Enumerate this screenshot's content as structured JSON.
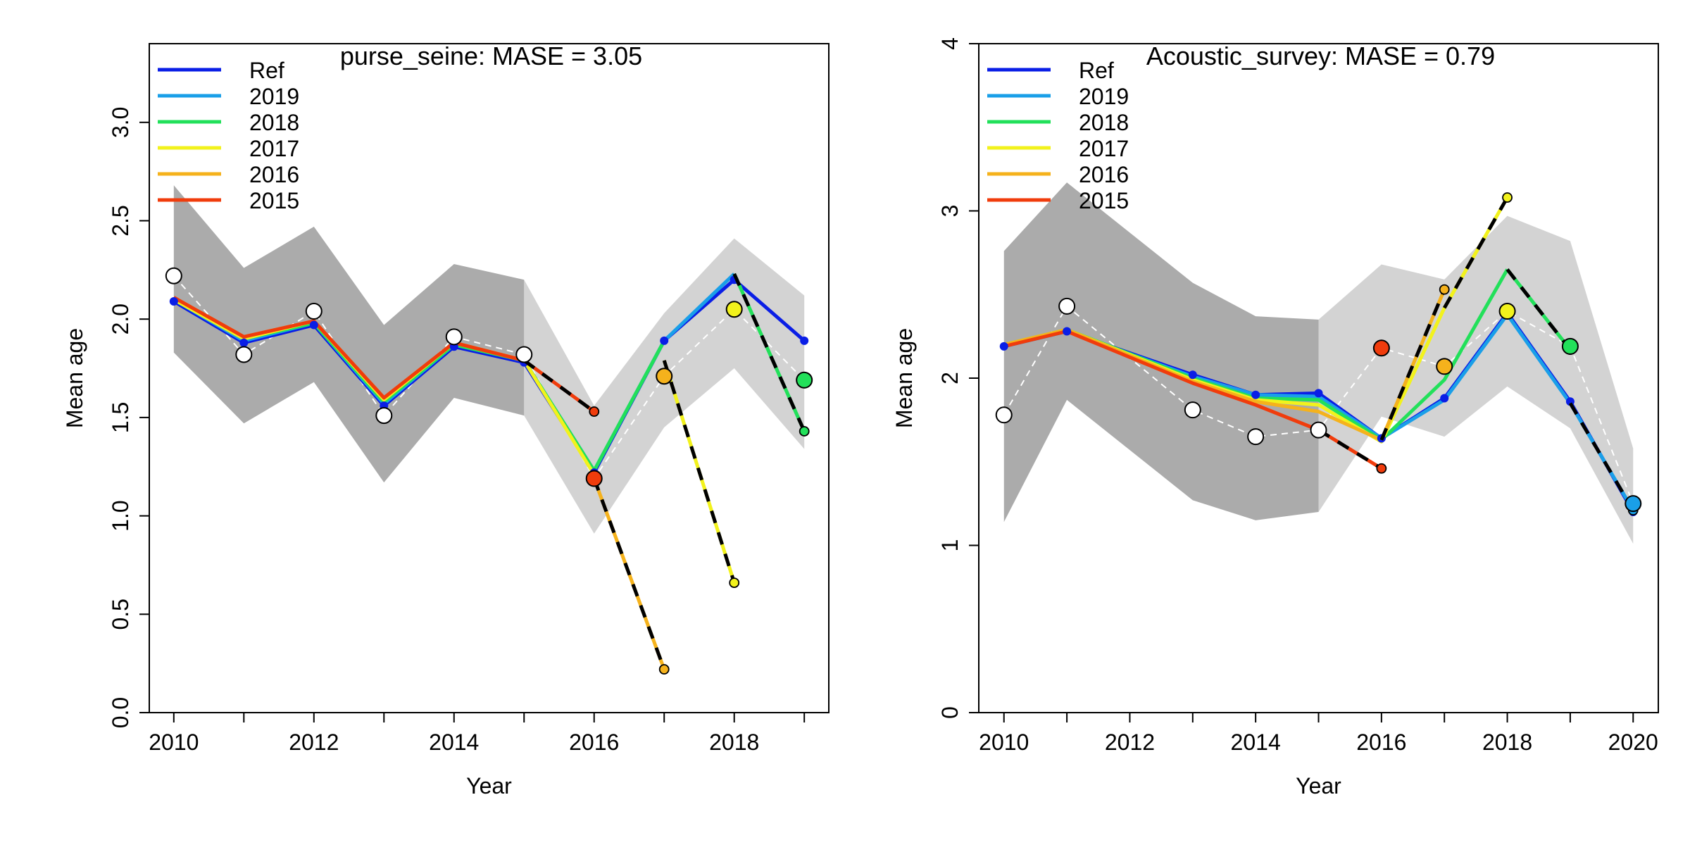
{
  "colors": {
    "Ref": "#0a1ee6",
    "2019": "#1a9fe8",
    "2018": "#22e05a",
    "2017": "#f2f21c",
    "2016": "#f5b21c",
    "2015": "#f03c0c",
    "obs_fill": "#ffffff",
    "band_dark": "#ababab",
    "band_light": "#d3d3d3",
    "hindcast_dash": "#000000"
  },
  "chart_data": [
    {
      "type": "line",
      "title": "purse_seine: MASE = 3.05",
      "xlabel": "Year",
      "ylabel": "Mean age",
      "xlim": [
        2009.65,
        2019.35
      ],
      "ylim": [
        0,
        3.4
      ],
      "xticks": [
        2010,
        2011,
        2012,
        2013,
        2014,
        2015,
        2016,
        2017,
        2018,
        2019
      ],
      "xtick_labels": [
        "2010",
        "",
        "2012",
        "",
        "2014",
        "",
        "2016",
        "",
        "2018",
        ""
      ],
      "yticks": [
        0,
        0.5,
        1,
        1.5,
        2,
        2.5,
        3
      ],
      "ytick_labels": [
        "0.0",
        "0.5",
        "1.0",
        "1.5",
        "2.0",
        "2.5",
        "3.0"
      ],
      "legend": [
        "Ref",
        "2019",
        "2018",
        "2017",
        "2016",
        "2015"
      ],
      "legend_position": "top-left",
      "band_dark": {
        "x": [
          2010,
          2011,
          2012,
          2013,
          2014,
          2015
        ],
        "lower": [
          1.83,
          1.47,
          1.68,
          1.17,
          1.6,
          1.51
        ],
        "upper": [
          2.68,
          2.26,
          2.47,
          1.97,
          2.28,
          2.2
        ]
      },
      "band_light": {
        "x": [
          2015,
          2016,
          2017,
          2018,
          2019
        ],
        "lower": [
          1.51,
          0.91,
          1.45,
          1.75,
          1.34
        ],
        "upper": [
          2.2,
          1.56,
          2.03,
          2.41,
          2.12
        ]
      },
      "observed": {
        "x": [
          2010,
          2011,
          2012,
          2013,
          2014,
          2015,
          2016,
          2017,
          2018,
          2019
        ],
        "y": [
          2.22,
          1.82,
          2.04,
          1.51,
          1.91,
          1.82,
          1.19,
          1.71,
          2.05,
          1.69
        ],
        "point_colors": [
          "obs_fill",
          "obs_fill",
          "obs_fill",
          "obs_fill",
          "obs_fill",
          "obs_fill",
          "2015",
          "2016",
          "2017",
          "2018"
        ]
      },
      "series": [
        {
          "name": "Ref",
          "x": [
            2010,
            2011,
            2012,
            2013,
            2014,
            2015,
            2016,
            2017,
            2018,
            2019
          ],
          "y": [
            2.09,
            1.88,
            1.97,
            1.56,
            1.86,
            1.78,
            1.22,
            1.89,
            2.2,
            1.89
          ]
        },
        {
          "name": "2019",
          "x": [
            2010,
            2011,
            2012,
            2013,
            2014,
            2015,
            2016,
            2017,
            2018
          ],
          "y": [
            2.1,
            1.89,
            1.98,
            1.57,
            1.87,
            1.79,
            1.23,
            1.89,
            2.23
          ]
        },
        {
          "name": "2018",
          "x": [
            2010,
            2011,
            2012,
            2013,
            2014,
            2015,
            2016,
            2017
          ],
          "y": [
            2.1,
            1.9,
            1.98,
            1.58,
            1.87,
            1.79,
            1.23,
            1.89
          ]
        },
        {
          "name": "2017",
          "x": [
            2010,
            2011,
            2012,
            2013,
            2014,
            2015,
            2016
          ],
          "y": [
            2.1,
            1.9,
            1.99,
            1.59,
            1.88,
            1.79,
            1.21
          ]
        },
        {
          "name": "2016",
          "x": [
            2010,
            2011,
            2012,
            2013,
            2014,
            2015
          ],
          "y": [
            2.11,
            1.91,
            1.99,
            1.6,
            1.88,
            1.79
          ]
        },
        {
          "name": "2015",
          "x": [
            2010,
            2011,
            2012,
            2013,
            2014,
            2015
          ],
          "y": [
            2.11,
            1.91,
            1.99,
            1.6,
            1.88,
            1.79
          ]
        }
      ],
      "hindcast": [
        {
          "name": "2018",
          "x": [
            2018,
            2019
          ],
          "y": [
            2.23,
            1.43
          ]
        },
        {
          "name": "2017",
          "x": [
            2017,
            2018
          ],
          "y": [
            1.79,
            0.66
          ]
        },
        {
          "name": "2016",
          "x": [
            2016,
            2017
          ],
          "y": [
            1.19,
            0.22
          ]
        },
        {
          "name": "2015",
          "x": [
            2015,
            2016
          ],
          "y": [
            1.79,
            1.53
          ]
        }
      ]
    },
    {
      "type": "line",
      "title": "Acoustic_survey: MASE = 0.79",
      "xlabel": "Year",
      "ylabel": "Mean age",
      "xlim": [
        2009.6,
        2020.4
      ],
      "ylim": [
        0,
        4
      ],
      "xticks": [
        2010,
        2011,
        2012,
        2013,
        2014,
        2015,
        2016,
        2017,
        2018,
        2019,
        2020
      ],
      "xtick_labels": [
        "2010",
        "",
        "2012",
        "",
        "2014",
        "",
        "2016",
        "",
        "2018",
        "",
        "2020"
      ],
      "yticks": [
        0,
        1,
        2,
        3,
        4
      ],
      "ytick_labels": [
        "0",
        "1",
        "2",
        "3",
        "4"
      ],
      "legend": [
        "Ref",
        "2019",
        "2018",
        "2017",
        "2016",
        "2015"
      ],
      "legend_position": "top-left",
      "band_dark": {
        "x": [
          2010,
          2011,
          2012,
          2013,
          2014,
          2015
        ],
        "lower": [
          1.14,
          1.87,
          1.57,
          1.27,
          1.15,
          1.2
        ],
        "upper": [
          2.76,
          3.17,
          2.87,
          2.57,
          2.37,
          2.35
        ]
      },
      "band_light": {
        "x": [
          2015,
          2016,
          2017,
          2018,
          2019,
          2020
        ],
        "lower": [
          1.2,
          1.77,
          1.65,
          1.95,
          1.7,
          1.01
        ],
        "upper": [
          2.35,
          2.68,
          2.59,
          2.97,
          2.82,
          1.58
        ]
      },
      "observed": {
        "x": [
          2010,
          2011,
          2013,
          2014,
          2015,
          2016,
          2017,
          2018,
          2019,
          2020
        ],
        "y": [
          1.78,
          2.43,
          1.81,
          1.65,
          1.69,
          2.18,
          2.07,
          2.4,
          2.19,
          1.25
        ],
        "point_colors": [
          "obs_fill",
          "obs_fill",
          "obs_fill",
          "obs_fill",
          "obs_fill",
          "2015",
          "2016",
          "2017",
          "2018",
          "2019"
        ]
      },
      "series": [
        {
          "name": "Ref",
          "x": [
            2010,
            2011,
            2013,
            2014,
            2015,
            2016,
            2017,
            2018,
            2019,
            2020
          ],
          "y": [
            2.19,
            2.28,
            2.02,
            1.9,
            1.91,
            1.64,
            1.88,
            2.39,
            1.86,
            1.2
          ]
        },
        {
          "name": "2019",
          "x": [
            2010,
            2011,
            2013,
            2014,
            2015,
            2016,
            2017,
            2018,
            2019
          ],
          "y": [
            2.19,
            2.28,
            2.01,
            1.9,
            1.89,
            1.64,
            1.87,
            2.38,
            1.85
          ]
        },
        {
          "name": "2018",
          "x": [
            2010,
            2011,
            2013,
            2014,
            2015,
            2016,
            2017,
            2018
          ],
          "y": [
            2.2,
            2.29,
            2.0,
            1.88,
            1.87,
            1.63,
            1.99,
            2.65
          ]
        },
        {
          "name": "2017",
          "x": [
            2010,
            2011,
            2013,
            2014,
            2015,
            2016,
            2017
          ],
          "y": [
            2.2,
            2.29,
            1.99,
            1.87,
            1.84,
            1.62,
            2.42
          ]
        },
        {
          "name": "2016",
          "x": [
            2010,
            2011,
            2013,
            2014,
            2015,
            2016
          ],
          "y": [
            2.2,
            2.29,
            1.98,
            1.86,
            1.8,
            1.63
          ]
        },
        {
          "name": "2015",
          "x": [
            2010,
            2011,
            2013,
            2014,
            2015
          ],
          "y": [
            2.19,
            2.28,
            1.97,
            1.84,
            1.69
          ]
        }
      ],
      "hindcast": [
        {
          "name": "2019",
          "x": [
            2019,
            2020
          ],
          "y": [
            1.85,
            1.21
          ]
        },
        {
          "name": "2018",
          "x": [
            2018,
            2019
          ],
          "y": [
            2.65,
            2.17
          ]
        },
        {
          "name": "2017",
          "x": [
            2017,
            2018
          ],
          "y": [
            2.42,
            3.08
          ]
        },
        {
          "name": "2016",
          "x": [
            2016,
            2017
          ],
          "y": [
            1.63,
            2.53
          ]
        },
        {
          "name": "2015",
          "x": [
            2015,
            2016
          ],
          "y": [
            1.69,
            1.46
          ]
        }
      ]
    }
  ]
}
